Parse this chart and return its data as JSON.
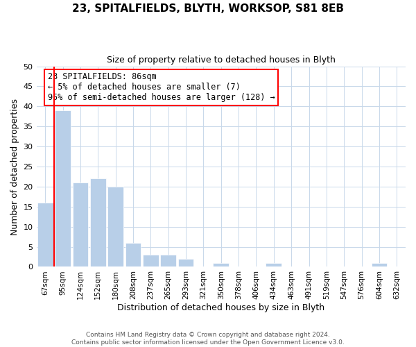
{
  "title": "23, SPITALFIELDS, BLYTH, WORKSOP, S81 8EB",
  "subtitle": "Size of property relative to detached houses in Blyth",
  "xlabel": "Distribution of detached houses by size in Blyth",
  "ylabel": "Number of detached properties",
  "bar_labels": [
    "67sqm",
    "95sqm",
    "124sqm",
    "152sqm",
    "180sqm",
    "208sqm",
    "237sqm",
    "265sqm",
    "293sqm",
    "321sqm",
    "350sqm",
    "378sqm",
    "406sqm",
    "434sqm",
    "463sqm",
    "491sqm",
    "519sqm",
    "547sqm",
    "576sqm",
    "604sqm",
    "632sqm"
  ],
  "bar_values": [
    16,
    39,
    21,
    22,
    20,
    6,
    3,
    3,
    2,
    0,
    1,
    0,
    0,
    1,
    0,
    0,
    0,
    0,
    0,
    1,
    0
  ],
  "bar_color": "#b8cfe8",
  "bar_edge_color": "#b8cfe8",
  "ylim": [
    0,
    50
  ],
  "yticks": [
    0,
    5,
    10,
    15,
    20,
    25,
    30,
    35,
    40,
    45,
    50
  ],
  "annotation_title": "23 SPITALFIELDS: 86sqm",
  "annotation_line1": "← 5% of detached houses are smaller (7)",
  "annotation_line2": "95% of semi-detached houses are larger (128) →",
  "footer1": "Contains HM Land Registry data © Crown copyright and database right 2024.",
  "footer2": "Contains public sector information licensed under the Open Government Licence v3.0.",
  "background_color": "#ffffff",
  "grid_color": "#c8d8ea"
}
